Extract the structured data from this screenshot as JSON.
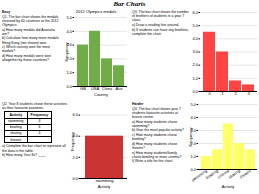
{
  "title": "Bar Charts",
  "chart_data": [
    {
      "type": "bar",
      "title": "2012 Olympics medals",
      "categories": [
        "GB",
        "USA",
        "China",
        "Aus"
      ],
      "values": [
        3,
        4,
        2,
        1.5
      ],
      "color": "#70ad47",
      "ylabel": "Frequency",
      "xlabel": "Country",
      "ylim": [
        0,
        5
      ],
      "yticks": [
        0,
        1,
        2,
        3,
        4,
        5
      ],
      "grid": true,
      "annotations": [
        "Easy",
        "Q1. The bar chart shows the medals received by 40 countries at the 2012 Olympics.",
        "a)  How many medals did Australia win?",
        "b)  Calculate how many more medals Hong Kong (not shown) won.",
        "c)  Which country won the most medals?",
        "d)  How many medals were won altogether by these countries?"
      ]
    },
    {
      "type": "bar",
      "categories": [
        "0",
        "1",
        "2",
        "3"
      ],
      "values": [
        4.5,
        3,
        0.8,
        0.5
      ],
      "color": "#ff4444",
      "ylim": [
        0,
        6
      ],
      "yticks": [
        0,
        1,
        2,
        3,
        4,
        5,
        6
      ],
      "grid": true,
      "annotations": [
        "Q3. The bar chart shows the number of brothers of students in a year 7 class.",
        "a)  Draw a reading line around.",
        "b)  If students can have any brothers, complete the chart."
      ]
    },
    {
      "type": "bar",
      "categories": [
        "swimming"
      ],
      "values": [
        4
      ],
      "color": "#cc3333",
      "ylabel": "Frequency",
      "xlabel": "Activity",
      "ylim": [
        0,
        7
      ],
      "yticks": [
        0,
        2,
        4,
        6
      ],
      "grid": true,
      "annotations": [
        "Q2. Year 8 students chose these activities as their favourite pastimes.",
        "a) Complete the bar chart to represent all the data in the table.",
        "b) How many Year 8s? ____"
      ],
      "table": {
        "headers": [
          "Activity",
          "Frequency"
        ],
        "rows": [
          [
            "swimming",
            "4"
          ],
          [
            "bowling",
            "6"
          ],
          [
            "skating",
            "4"
          ],
          [
            "theatre",
            null
          ]
        ]
      }
    },
    {
      "type": "bar",
      "categories": [
        "swimming",
        "bowling",
        "cinema",
        "skating",
        "theatre"
      ],
      "values": [
        1,
        1.5,
        3.5,
        2,
        1.5
      ],
      "color": "#ffff66",
      "ylabel": "Frequency",
      "xlabel": "Activity",
      "ylim": [
        0,
        5
      ],
      "yticks": [
        0,
        1,
        2,
        3,
        4,
        5
      ],
      "grid": true,
      "annotations": [
        "Harder",
        "Q3. The bar chart shows year 7 students favourite activities at leisure centre.",
        "a)  How many students chose swimming?",
        "b)  Give the most popular activity?",
        "c)  How many students chose bowling?",
        "d)  How many students chose theatre?",
        "e)  How many students/family chose bowling or more cinema?",
        "f)  Write a title for the chart."
      ]
    }
  ]
}
